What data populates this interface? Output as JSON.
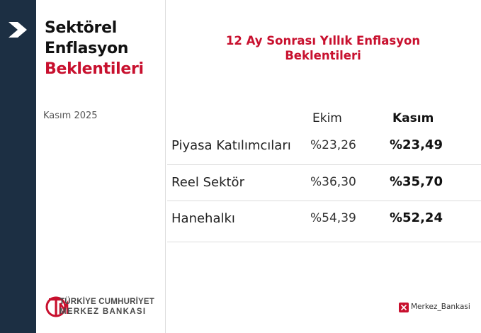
{
  "sidebar": {
    "title_line1": "Sektörel",
    "title_line2": "Enflasyon",
    "title_line3": "Beklentileri",
    "date": "Kasım 2025",
    "logo": {
      "line1": "TÜRKİYE CUMHURİYET",
      "line2": "MERKEZ BANKASI",
      "mark_letters": "TCMB"
    }
  },
  "main": {
    "title": "12 Ay Sonrası Yıllık Enflasyon Beklentileri",
    "columns": [
      "Ekim",
      "Kasım"
    ],
    "rows": [
      {
        "label": "Piyasa Katılımcıları",
        "ekim": "%23,26",
        "kasim": "%23,49"
      },
      {
        "label": "Reel Sektör",
        "ekim": "%36,30",
        "kasim": "%35,70"
      },
      {
        "label": "Hanehalkı",
        "ekim": "%54,39",
        "kasim": "%52,24"
      }
    ]
  },
  "footer": {
    "handle": "Merkez_Bankasi",
    "icon": "x-icon"
  },
  "icons": {
    "nav": "chevron-right-icon"
  },
  "colors": {
    "accent_red": "#c8102e",
    "nav_bg": "#1c2f43",
    "text_dark": "#111111"
  }
}
